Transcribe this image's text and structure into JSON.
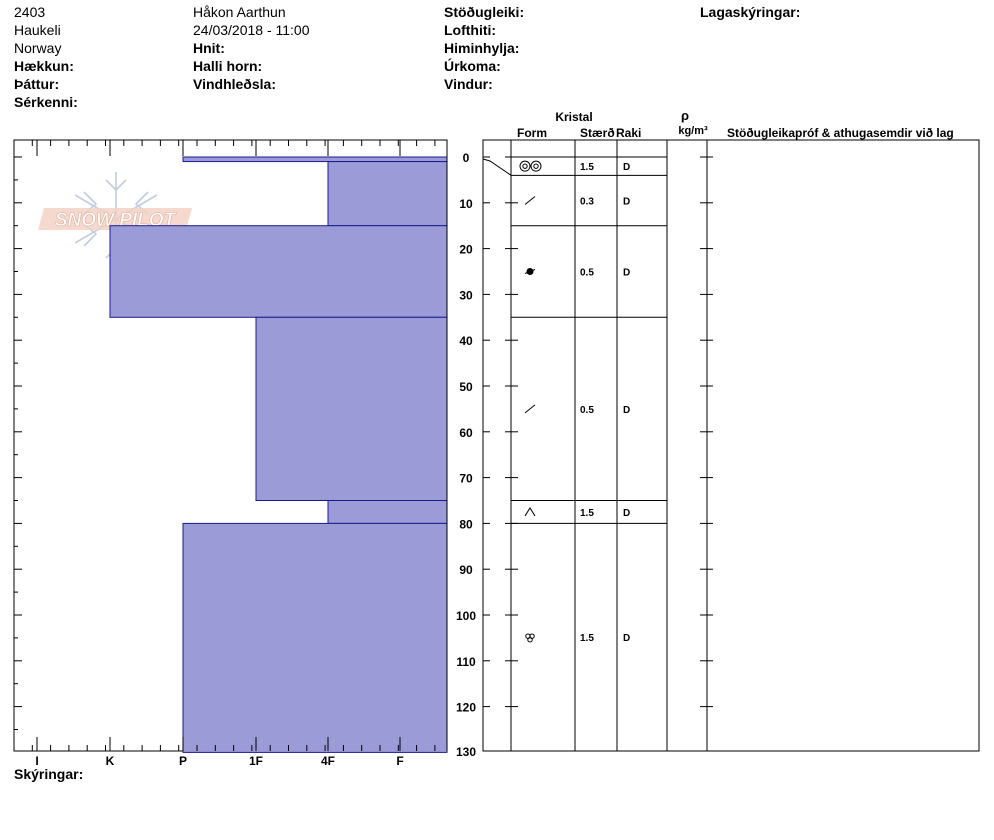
{
  "header": {
    "col1": [
      "2403",
      "Haukeli",
      "Norway"
    ],
    "col1_bold": [
      "Hækkun:",
      "Þáttur:",
      "Sérkenni:"
    ],
    "observer": "Håkon Aarthun",
    "datetime": "24/03/2018 - 11:00",
    "col2_bold": [
      "Hnit:",
      "Halli horn:",
      "Vindhleðsla:"
    ],
    "col3_bold": [
      "Stöðugleiki:",
      "Lofthiti:",
      "Himinhylja:",
      "Úrkoma:",
      "Vindur:"
    ],
    "legend_title": "Lagaskýringar:"
  },
  "footer": {
    "notes_label": "Skýringar:"
  },
  "watermark": {
    "text": "SNOW PILOT"
  },
  "colors": {
    "hardness_fill": "#9b9bd7",
    "hardness_stroke": "#1a1a8c",
    "watermark": "#e8b8a8"
  },
  "columns": {
    "crystal_group": "Kristal",
    "form": "Form",
    "size": "Stærð",
    "moisture": "Raki",
    "density_symbol": "ρ",
    "density_unit": "kg/m³",
    "comments": "Stöðugleikapróf & athugasemdir við lag"
  },
  "chart_data": {
    "type": "snow-profile",
    "depth_range": [
      0,
      130
    ],
    "depth_ticks": [
      "0",
      "10",
      "20",
      "30",
      "40",
      "50",
      "60",
      "70",
      "80",
      "90",
      "100",
      "110",
      "120",
      "130"
    ],
    "hardness_labels": [
      "I",
      "K",
      "P",
      "1F",
      "4F",
      "F"
    ],
    "hardness_layers": [
      {
        "top": 0,
        "bottom": 1,
        "hardness": "P"
      },
      {
        "top": 1,
        "bottom": 15,
        "hardness": "4F"
      },
      {
        "top": 15,
        "bottom": 35,
        "hardness": "K"
      },
      {
        "top": 35,
        "bottom": 75,
        "hardness": "1F"
      },
      {
        "top": 75,
        "bottom": 80,
        "hardness": "4F"
      },
      {
        "top": 80,
        "bottom": 130,
        "hardness": "P"
      }
    ],
    "crystal_layers": [
      {
        "top": 0,
        "bottom": 4,
        "form": "melt-forms-icon",
        "size": "1.5",
        "moisture": "D"
      },
      {
        "top": 4,
        "bottom": 15,
        "form": "decomposing-icon",
        "size": "0.3",
        "moisture": "D"
      },
      {
        "top": 15,
        "bottom": 35,
        "form": "rounded-grains-icon",
        "size": "0.5",
        "moisture": "D"
      },
      {
        "top": 35,
        "bottom": 75,
        "form": "decomposing-icon",
        "size": "0.5",
        "moisture": "D"
      },
      {
        "top": 75,
        "bottom": 80,
        "form": "depth-hoar-icon",
        "size": "1.5",
        "moisture": "D"
      },
      {
        "top": 80,
        "bottom": 130,
        "form": "melt-clusters-icon",
        "size": "1.5",
        "moisture": "D"
      }
    ]
  }
}
